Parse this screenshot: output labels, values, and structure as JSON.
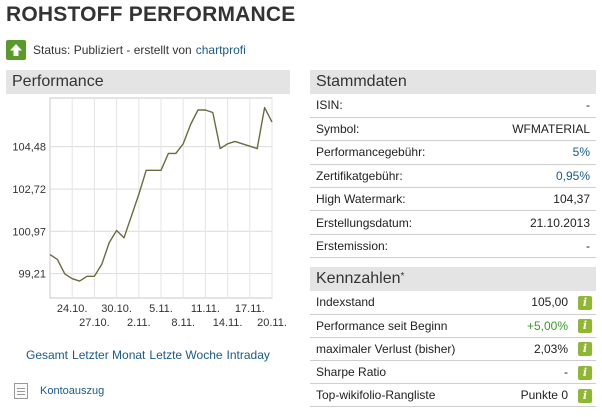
{
  "page": {
    "title": "ROHSTOFF PERFORMANCE"
  },
  "status": {
    "label": "Status: Publiziert - erstellt von",
    "author": "chartprofi"
  },
  "performance": {
    "header": "Performance",
    "range_links": [
      "Gesamt",
      "Letzter Monat",
      "Letzte Woche",
      "Intraday"
    ],
    "kontoauszug": "Kontoauszug"
  },
  "chart_data": {
    "type": "line",
    "title": "",
    "xlabel": "",
    "ylabel": "",
    "y_ticks": [
      99.21,
      100.97,
      102.72,
      104.48
    ],
    "y_tick_labels": [
      "99,21",
      "100,97",
      "102,72",
      "104,48"
    ],
    "ylim": [
      98.2,
      106.5
    ],
    "x_tick_labels_top": [
      "24.10.",
      "30.10.",
      "5.11.",
      "11.11.",
      "17.11."
    ],
    "x_tick_labels_bottom": [
      "27.10.",
      "2.11.",
      "8.11.",
      "14.11.",
      "20.11."
    ],
    "grid": true,
    "series": [
      {
        "x": [
          "21.10.",
          "22.10.",
          "23.10.",
          "24.10.",
          "25.10.",
          "26.10.",
          "27.10.",
          "28.10.",
          "29.10.",
          "30.10.",
          "31.10.",
          "1.11.",
          "2.11.",
          "3.11.",
          "4.11.",
          "5.11.",
          "6.11.",
          "7.11.",
          "8.11.",
          "9.11.",
          "10.11.",
          "11.11.",
          "12.11.",
          "13.11.",
          "14.11.",
          "15.11.",
          "16.11.",
          "17.11.",
          "18.11.",
          "19.11.",
          "20.11."
        ],
        "values": [
          100.0,
          99.8,
          99.2,
          99.0,
          98.9,
          99.1,
          99.1,
          99.6,
          100.5,
          101.0,
          100.7,
          101.6,
          102.5,
          103.5,
          103.5,
          103.5,
          104.2,
          104.2,
          104.6,
          105.4,
          106.0,
          106.0,
          105.9,
          104.4,
          104.6,
          104.7,
          104.6,
          104.5,
          104.4,
          106.1,
          105.5
        ]
      }
    ]
  },
  "stammdaten": {
    "header": "Stammdaten",
    "rows": [
      {
        "label": "ISIN:",
        "value": "-"
      },
      {
        "label": "Symbol:",
        "value": "WFMATERIAL"
      },
      {
        "label": "Performancegebühr:",
        "value": "5%"
      },
      {
        "label": "Zertifikatgebühr:",
        "value": "0,95%"
      },
      {
        "label": "High Watermark:",
        "value": "104,37"
      },
      {
        "label": "Erstellungsdatum:",
        "value": "21.10.2013"
      },
      {
        "label": "Erstemission:",
        "value": "-"
      }
    ]
  },
  "kennzahlen": {
    "header": "Kennzahlen",
    "header_mark": "*",
    "info_glyph": "i",
    "rows": [
      {
        "label": "Indexstand",
        "value": "105,00"
      },
      {
        "label": "Performance seit Beginn",
        "value": "+5,00%"
      },
      {
        "label": "maximaler Verlust (bisher)",
        "value": "2,03%"
      },
      {
        "label": "Sharpe Ratio",
        "value": "-"
      },
      {
        "label": "Top-wikifolio-Rangliste",
        "value": "Punkte 0"
      }
    ]
  },
  "colors": {
    "accent_link": "#1a5a8a",
    "status_green": "#5a9a2a",
    "positive": "#3a9a2a",
    "line": "#6b6b3f",
    "info_icon": "#8fb832"
  }
}
